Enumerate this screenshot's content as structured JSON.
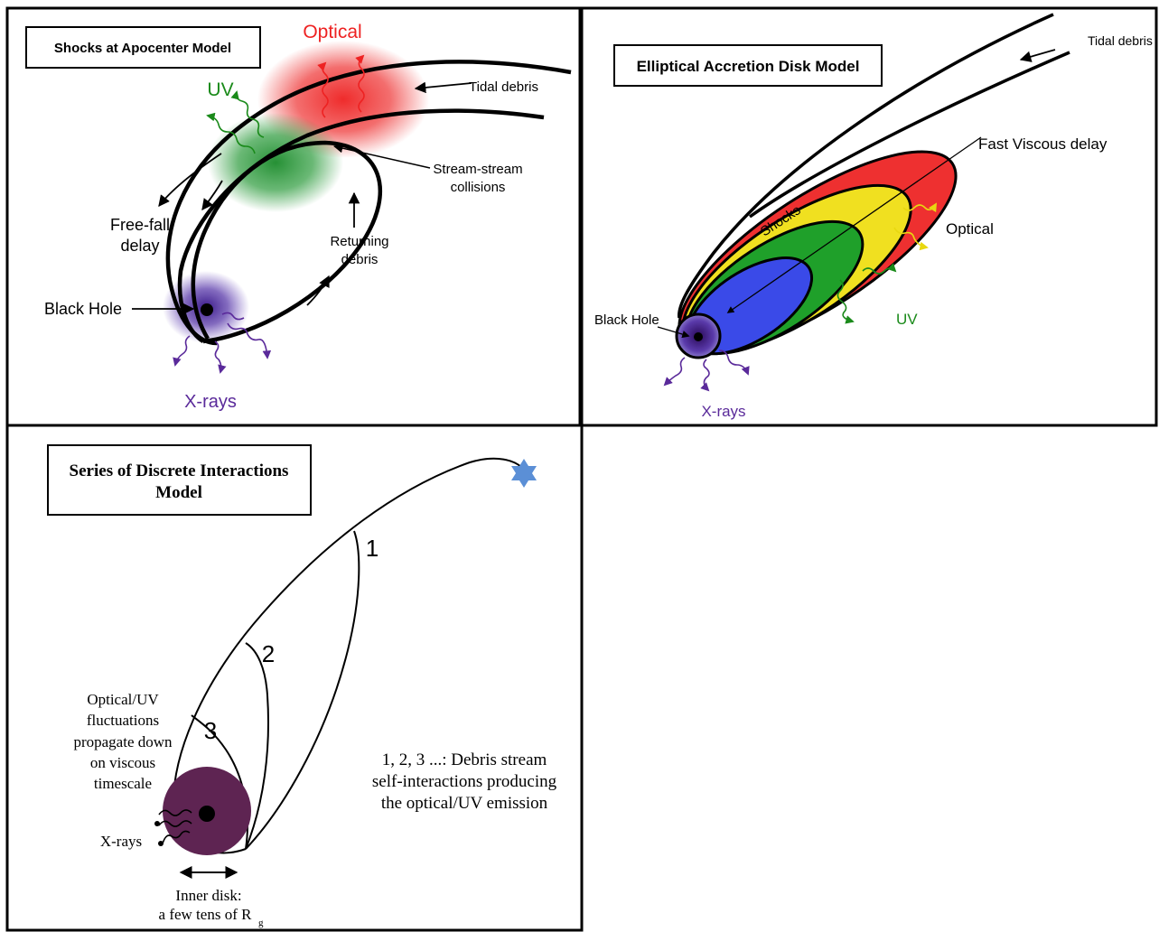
{
  "colors": {
    "optical": "#ee2222",
    "uv": "#1a8a1a",
    "xray": "#5a2a9a",
    "yellow": "#f0e020",
    "blue": "#3a4ae8",
    "green": "#1fa02a",
    "red": "#ee3030",
    "bh_disk": "#5e2452",
    "star": "#5b8fd6"
  },
  "panel1": {
    "title": "Shocks at Apocenter Model",
    "optical": "Optical",
    "uv": "UV",
    "tidal_debris": "Tidal debris",
    "stream_collisions_1": "Stream-stream",
    "stream_collisions_2": "collisions",
    "free_fall_1": "Free-fall",
    "free_fall_2": "delay",
    "returning_1": "Returning",
    "returning_2": "debris",
    "black_hole": "Black Hole",
    "xrays": "X-rays"
  },
  "panel2": {
    "title": "Elliptical Accretion Disk Model",
    "tidal_debris": "Tidal debris",
    "fast_viscous": "Fast Viscous delay",
    "shocks": "Shocks",
    "optical": "Optical",
    "uv": "UV",
    "black_hole": "Black Hole",
    "xrays": "X-rays"
  },
  "panel3": {
    "title_1": "Series of Discrete Interactions",
    "title_2": "Model",
    "n1": "1",
    "n2": "2",
    "n3": "3",
    "fluct_1": "Optical/UV",
    "fluct_2": "fluctuations",
    "fluct_3": "propagate down",
    "fluct_4": "on viscous",
    "fluct_5": "timescale",
    "xrays": "X-rays",
    "inner_1": "Inner disk:",
    "inner_2": "a few tens of R",
    "inner_sub": "g",
    "note_1": "1, 2, 3 ...: Debris stream",
    "note_2": "self-interactions producing",
    "note_3": "the optical/UV emission"
  }
}
